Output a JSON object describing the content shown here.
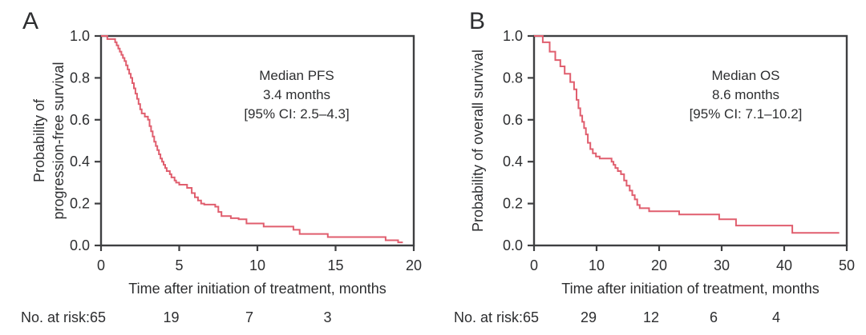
{
  "figure": {
    "colors": {
      "curve": "#e05e6e",
      "axis": "#3e3f41",
      "text": "#2d2e30",
      "background": "#ffffff"
    }
  },
  "chart_data": [
    {
      "id": "pfs",
      "panel_label": "A",
      "type": "line",
      "style": "kaplan-meier-step",
      "xlabel": "Time after initiation of treatment, months",
      "ylabel_lines": [
        "Probability of",
        "progression-free survival"
      ],
      "xlim": [
        0,
        20
      ],
      "ylim": [
        0,
        1
      ],
      "xticks": [
        0,
        5,
        10,
        15,
        20
      ],
      "yticks": [
        0.0,
        0.2,
        0.4,
        0.6,
        0.8,
        1.0
      ],
      "grid": false,
      "annotation_lines": [
        "Median PFS",
        "3.4 months",
        "[95% CI: 2.5–4.3]"
      ],
      "median_months": 3.4,
      "ci_95": "2.5–4.3",
      "steps": [
        [
          0,
          1.0
        ],
        [
          0.4,
          0.985
        ],
        [
          0.9,
          0.97
        ],
        [
          1.0,
          0.955
        ],
        [
          1.1,
          0.94
        ],
        [
          1.2,
          0.925
        ],
        [
          1.3,
          0.91
        ],
        [
          1.4,
          0.895
        ],
        [
          1.5,
          0.88
        ],
        [
          1.6,
          0.86
        ],
        [
          1.7,
          0.84
        ],
        [
          1.8,
          0.82
        ],
        [
          1.9,
          0.8
        ],
        [
          2.0,
          0.775
        ],
        [
          2.1,
          0.75
        ],
        [
          2.2,
          0.725
        ],
        [
          2.3,
          0.7
        ],
        [
          2.4,
          0.675
        ],
        [
          2.5,
          0.65
        ],
        [
          2.6,
          0.63
        ],
        [
          2.8,
          0.615
        ],
        [
          3.0,
          0.6
        ],
        [
          3.1,
          0.57
        ],
        [
          3.2,
          0.545
        ],
        [
          3.3,
          0.52
        ],
        [
          3.4,
          0.495
        ],
        [
          3.5,
          0.475
        ],
        [
          3.6,
          0.455
        ],
        [
          3.7,
          0.435
        ],
        [
          3.8,
          0.415
        ],
        [
          3.9,
          0.4
        ],
        [
          4.0,
          0.385
        ],
        [
          4.1,
          0.37
        ],
        [
          4.2,
          0.355
        ],
        [
          4.4,
          0.34
        ],
        [
          4.5,
          0.325
        ],
        [
          4.7,
          0.31
        ],
        [
          4.8,
          0.3
        ],
        [
          5.0,
          0.29
        ],
        [
          5.5,
          0.275
        ],
        [
          5.8,
          0.25
        ],
        [
          6.0,
          0.23
        ],
        [
          6.2,
          0.215
        ],
        [
          6.4,
          0.2
        ],
        [
          6.6,
          0.195
        ],
        [
          7.3,
          0.185
        ],
        [
          7.5,
          0.16
        ],
        [
          7.7,
          0.14
        ],
        [
          8.3,
          0.13
        ],
        [
          8.8,
          0.125
        ],
        [
          9.3,
          0.105
        ],
        [
          10.4,
          0.09
        ],
        [
          12.3,
          0.075
        ],
        [
          12.7,
          0.055
        ],
        [
          14.5,
          0.04
        ],
        [
          18.2,
          0.025
        ],
        [
          19.0,
          0.015
        ],
        [
          19.3,
          0.015
        ]
      ],
      "at_risk": {
        "label": "No. at risk:",
        "times": [
          0,
          5,
          10,
          15
        ],
        "counts": [
          65,
          19,
          7,
          3
        ]
      }
    },
    {
      "id": "os",
      "panel_label": "B",
      "type": "line",
      "style": "kaplan-meier-step",
      "xlabel": "Time after initiation of treatment, months",
      "ylabel_lines": [
        "Probability of overall survival"
      ],
      "xlim": [
        0,
        50
      ],
      "ylim": [
        0,
        1
      ],
      "xticks": [
        0,
        10,
        20,
        30,
        40,
        50
      ],
      "yticks": [
        0.0,
        0.2,
        0.4,
        0.6,
        0.8,
        1.0
      ],
      "grid": false,
      "annotation_lines": [
        "Median OS",
        "8.6 months",
        "[95% CI: 7.1–10.2]"
      ],
      "median_months": 8.6,
      "ci_95": "7.1–10.2",
      "steps": [
        [
          0,
          1.0
        ],
        [
          1.4,
          0.97
        ],
        [
          2.5,
          0.925
        ],
        [
          3.4,
          0.885
        ],
        [
          4.2,
          0.855
        ],
        [
          4.9,
          0.82
        ],
        [
          5.8,
          0.78
        ],
        [
          6.4,
          0.745
        ],
        [
          6.8,
          0.695
        ],
        [
          7.1,
          0.655
        ],
        [
          7.4,
          0.62
        ],
        [
          7.7,
          0.59
        ],
        [
          8.0,
          0.56
        ],
        [
          8.3,
          0.53
        ],
        [
          8.6,
          0.49
        ],
        [
          9.0,
          0.46
        ],
        [
          9.4,
          0.44
        ],
        [
          9.9,
          0.425
        ],
        [
          10.5,
          0.415
        ],
        [
          12.4,
          0.4
        ],
        [
          12.7,
          0.385
        ],
        [
          13.0,
          0.37
        ],
        [
          13.4,
          0.355
        ],
        [
          13.9,
          0.34
        ],
        [
          14.4,
          0.31
        ],
        [
          14.8,
          0.285
        ],
        [
          15.3,
          0.262
        ],
        [
          15.7,
          0.24
        ],
        [
          16.1,
          0.22
        ],
        [
          16.5,
          0.193
        ],
        [
          16.9,
          0.178
        ],
        [
          18.4,
          0.163
        ],
        [
          23.2,
          0.148
        ],
        [
          29.6,
          0.125
        ],
        [
          32.3,
          0.095
        ],
        [
          41.3,
          0.06
        ],
        [
          48.8,
          0.06
        ]
      ],
      "at_risk": {
        "label": "No. at risk:",
        "times": [
          0,
          10,
          20,
          30,
          40
        ],
        "counts": [
          65,
          29,
          12,
          6,
          4
        ]
      }
    }
  ]
}
